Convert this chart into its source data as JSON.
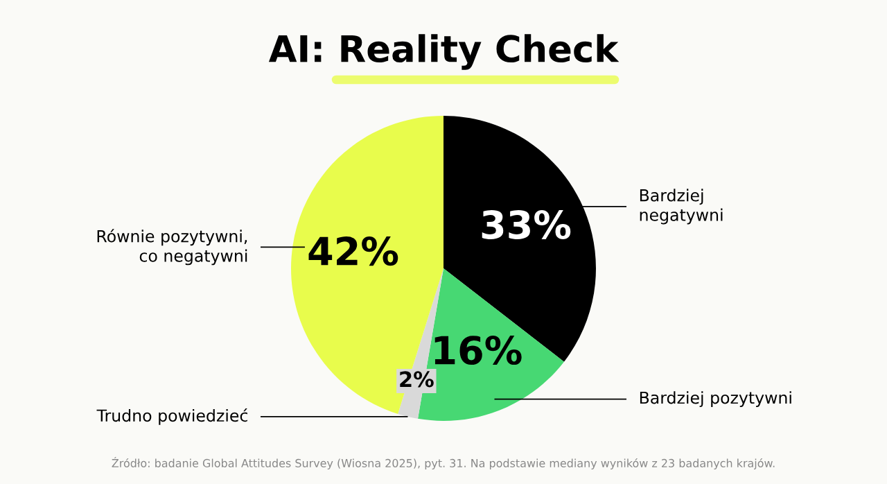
{
  "chart_data": {
    "type": "pie",
    "title": "AI: Reality Check",
    "categories": [
      "Bardziej\nnegatywni",
      "Bardziej pozytywni",
      "Trudno powiedzieć",
      "Równie pozytywni,\nco negatywni"
    ],
    "values": [
      33,
      16,
      2,
      42
    ],
    "colors": [
      "#000000",
      "#47d873",
      "#d9d9d9",
      "#e8fc4c"
    ],
    "value_labels": [
      "33%",
      "16%",
      "2%",
      "42%"
    ],
    "annotations": [
      "Źródło: badanie Global Attitudes Survey (Wiosna 2025), pyt. 31. Na podstawie mediany wyników z 23 badanych krajów."
    ]
  }
}
